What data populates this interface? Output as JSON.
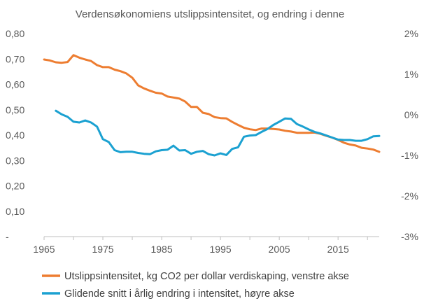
{
  "chart_data": {
    "type": "line",
    "title": "Verdensøkonomiens utslippsintensitet, og endring i denne",
    "xlabel": "",
    "ylabel": "",
    "xlim": [
      1965,
      2022
    ],
    "x_ticks": [
      "1965",
      "1975",
      "1985",
      "1995",
      "2005",
      "2015"
    ],
    "y_left": {
      "ylim": [
        0,
        0.8
      ],
      "ticks": [
        "-",
        "0,10",
        "0,20",
        "0,30",
        "0,40",
        "0,50",
        "0,60",
        "0,70",
        "0,80"
      ]
    },
    "y_right": {
      "ylim": [
        -3,
        2
      ],
      "ticks": [
        "-3%",
        "-2%",
        "-1%",
        "0%",
        "1%",
        "2%"
      ]
    },
    "grid": false,
    "legend_position": "bottom",
    "series": [
      {
        "name": "Utslippsintensitet, kg CO2 per dollar verdiskaping, venstre akse",
        "axis": "left",
        "color": "#ED7D31",
        "x": [
          1965,
          1966,
          1967,
          1968,
          1969,
          1970,
          1971,
          1972,
          1973,
          1974,
          1975,
          1976,
          1977,
          1978,
          1979,
          1980,
          1981,
          1982,
          1983,
          1984,
          1985,
          1986,
          1987,
          1988,
          1989,
          1990,
          1991,
          1992,
          1993,
          1994,
          1995,
          1996,
          1997,
          1998,
          1999,
          2000,
          2001,
          2002,
          2003,
          2004,
          2005,
          2006,
          2007,
          2008,
          2009,
          2010,
          2011,
          2012,
          2013,
          2014,
          2015,
          2016,
          2017,
          2018,
          2019,
          2020,
          2021,
          2022
        ],
        "values": [
          0.698,
          0.694,
          0.687,
          0.685,
          0.688,
          0.715,
          0.705,
          0.698,
          0.692,
          0.676,
          0.668,
          0.668,
          0.658,
          0.652,
          0.643,
          0.626,
          0.596,
          0.584,
          0.575,
          0.567,
          0.564,
          0.552,
          0.548,
          0.544,
          0.532,
          0.511,
          0.511,
          0.488,
          0.483,
          0.471,
          0.467,
          0.466,
          0.452,
          0.44,
          0.429,
          0.423,
          0.42,
          0.426,
          0.426,
          0.424,
          0.422,
          0.417,
          0.414,
          0.409,
          0.409,
          0.409,
          0.41,
          0.405,
          0.397,
          0.39,
          0.381,
          0.37,
          0.363,
          0.359,
          0.35,
          0.347,
          0.343,
          0.334
        ]
      },
      {
        "name": "Glidende snitt i årlig endring i intensitet, høyre akse",
        "axis": "right",
        "color": "#1BA1D1",
        "x": [
          1967,
          1968,
          1969,
          1970,
          1971,
          1972,
          1973,
          1974,
          1975,
          1976,
          1977,
          1978,
          1979,
          1980,
          1981,
          1982,
          1983,
          1984,
          1985,
          1986,
          1987,
          1988,
          1989,
          1990,
          1991,
          1992,
          1993,
          1994,
          1995,
          1996,
          1997,
          1998,
          1999,
          2000,
          2001,
          2002,
          2003,
          2004,
          2005,
          2006,
          2007,
          2008,
          2009,
          2010,
          2011,
          2012,
          2013,
          2014,
          2015,
          2016,
          2017,
          2018,
          2019,
          2020,
          2021,
          2022
        ],
        "values": [
          0.1,
          0.01,
          -0.05,
          -0.17,
          -0.19,
          -0.14,
          -0.19,
          -0.29,
          -0.6,
          -0.67,
          -0.87,
          -0.92,
          -0.91,
          -0.91,
          -0.94,
          -0.96,
          -0.97,
          -0.9,
          -0.87,
          -0.86,
          -0.76,
          -0.88,
          -0.87,
          -0.96,
          -0.91,
          -0.89,
          -0.97,
          -1.0,
          -0.95,
          -0.99,
          -0.84,
          -0.8,
          -0.54,
          -0.51,
          -0.5,
          -0.42,
          -0.35,
          -0.25,
          -0.17,
          -0.09,
          -0.1,
          -0.23,
          -0.29,
          -0.36,
          -0.42,
          -0.46,
          -0.51,
          -0.56,
          -0.61,
          -0.62,
          -0.62,
          -0.64,
          -0.64,
          -0.6,
          -0.53,
          -0.52
        ]
      }
    ]
  }
}
